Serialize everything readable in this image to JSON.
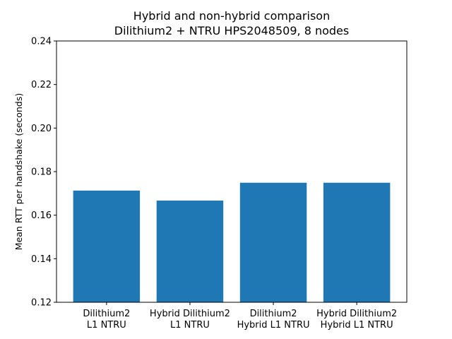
{
  "chart_data": {
    "type": "bar",
    "title": "Hybrid and non-hybrid comparison",
    "subtitle": "Dilithium2 + NTRU HPS2048509, 8 nodes",
    "xlabel": "",
    "ylabel": "Mean RTT per handshake (seconds)",
    "ylim": [
      0.12,
      0.24
    ],
    "yticks": [
      "0.12",
      "0.14",
      "0.16",
      "0.18",
      "0.20",
      "0.22",
      "0.24"
    ],
    "categories": [
      [
        "Dilithium2",
        "L1 NTRU"
      ],
      [
        "Hybrid Dilithium2",
        "L1 NTRU"
      ],
      [
        "Dilithium2",
        "Hybrid L1 NTRU"
      ],
      [
        "Hybrid Dilithium2",
        "Hybrid L1 NTRU"
      ]
    ],
    "values": [
      0.1713,
      0.1667,
      0.1749,
      0.1749
    ],
    "bar_color": "#1f77b4",
    "grid": false,
    "legend": "none"
  }
}
